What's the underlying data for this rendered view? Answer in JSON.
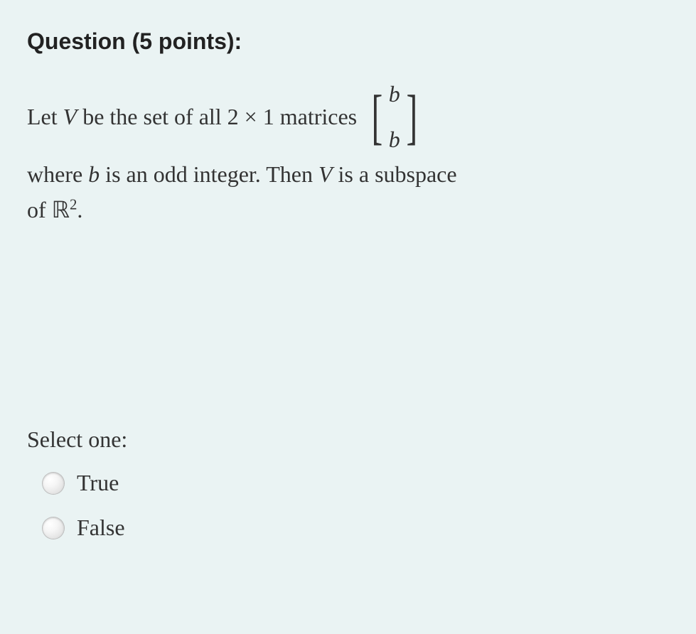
{
  "heading": "Question (5 points):",
  "question": {
    "line1_pre": "Let ",
    "V": "V",
    "line1_mid": " be the set of all ",
    "two": "2",
    "times": " × ",
    "one": "1",
    "line1_post": " matrices ",
    "matrix_top": "b",
    "matrix_bottom": "b",
    "line2_pre": "where ",
    "b": "b",
    "line2_mid": " is an odd integer. Then ",
    "line2_post": " is a subspace",
    "line3_pre": "of ",
    "R": "ℝ",
    "exp": "2",
    "period": "."
  },
  "prompt": "Select one:",
  "options": {
    "true": "True",
    "false": "False"
  },
  "colors": {
    "background": "#eaf3f3",
    "text": "#333333",
    "heading": "#222222"
  }
}
